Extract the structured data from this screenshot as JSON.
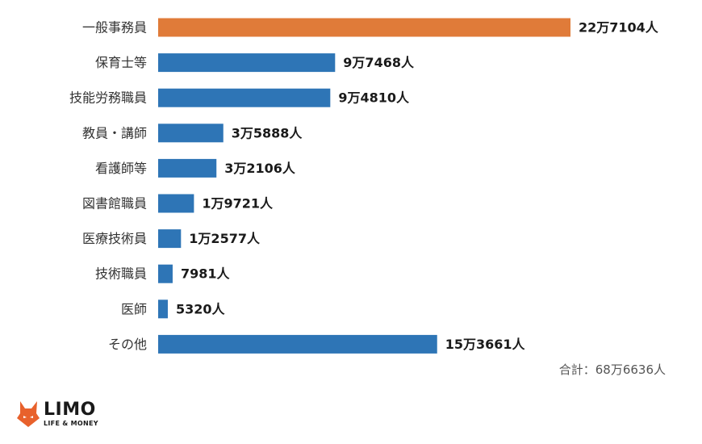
{
  "chart_data": {
    "type": "bar",
    "orientation": "horizontal",
    "categories": [
      "一般事務員",
      "保育士等",
      "技能労務職員",
      "教員・講師",
      "看護師等",
      "図書館職員",
      "医療技術員",
      "技術職員",
      "医師",
      "その他"
    ],
    "values": [
      227104,
      97468,
      94810,
      35888,
      32106,
      19721,
      12577,
      7981,
      5320,
      153661
    ],
    "value_labels": [
      "22万7104人",
      "9万7468人",
      "9万4810人",
      "3万5888人",
      "3万2106人",
      "1万9721人",
      "1万2577人",
      "7981人",
      "5320人",
      "15万3661人"
    ],
    "highlight_index": 0,
    "colors": {
      "default": "#2e75b6",
      "highlight": "#e07b39"
    },
    "xlim": [
      0,
      227104
    ],
    "grid": false,
    "legend": "none"
  },
  "total_label": "合計：68万6636人",
  "logo": {
    "main": "LIMO",
    "sub": "LIFE & MONEY",
    "icon": "fox-icon",
    "color": "#e8612c"
  }
}
